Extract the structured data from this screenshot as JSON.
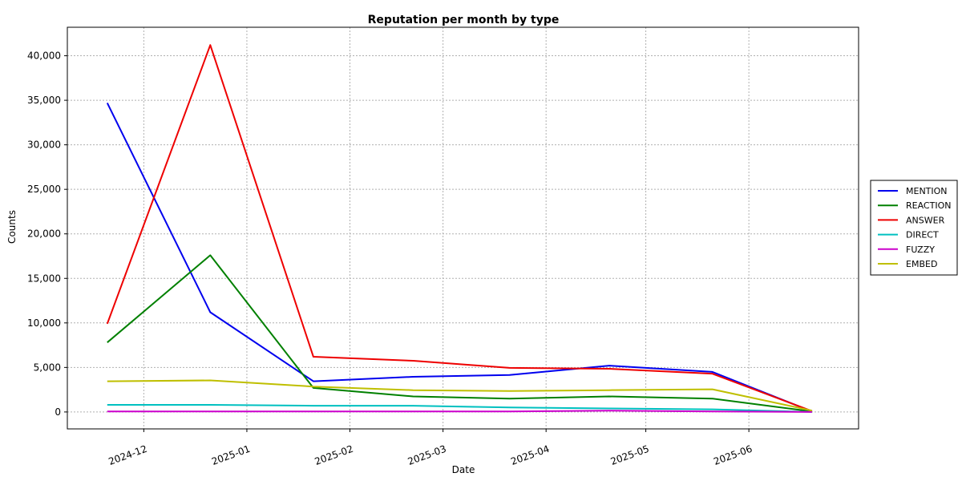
{
  "chart_data": {
    "type": "line",
    "title": "Reputation per month by type",
    "xlabel": "Date",
    "ylabel": "Counts",
    "x": [
      "2024-11-20",
      "2024-12-21",
      "2025-01-21",
      "2025-02-20",
      "2025-03-21",
      "2025-04-20",
      "2025-05-21",
      "2025-06-20"
    ],
    "xlim": [
      "2024-11-08",
      "2025-07-04"
    ],
    "ylim": [
      -1900,
      43200
    ],
    "x_ticks": [
      "2024-12-01",
      "2025-01-01",
      "2025-02-01",
      "2025-03-01",
      "2025-04-01",
      "2025-05-01",
      "2025-06-01"
    ],
    "x_tick_labels": [
      "2024-12",
      "2025-01",
      "2025-02",
      "2025-03",
      "2025-04",
      "2025-05",
      "2025-06"
    ],
    "y_ticks": [
      0,
      5000,
      10000,
      15000,
      20000,
      25000,
      30000,
      35000,
      40000
    ],
    "y_tick_labels": [
      "0",
      "5,000",
      "10,000",
      "15,000",
      "20,000",
      "25,000",
      "30,000",
      "35,000",
      "40,000"
    ],
    "grid": true,
    "legend_position": "right",
    "series": [
      {
        "name": "MENTION",
        "color": "#0000ee",
        "values": [
          34700,
          11200,
          3450,
          3950,
          4150,
          5200,
          4500,
          50
        ]
      },
      {
        "name": "REACTION",
        "color": "#008000",
        "values": [
          7800,
          17600,
          2700,
          1750,
          1500,
          1750,
          1500,
          50
        ]
      },
      {
        "name": "ANSWER",
        "color": "#ee0000",
        "values": [
          9900,
          41200,
          6200,
          5750,
          4950,
          4850,
          4300,
          100
        ]
      },
      {
        "name": "DIRECT",
        "color": "#00c0c0",
        "values": [
          800,
          800,
          700,
          700,
          500,
          400,
          300,
          0
        ]
      },
      {
        "name": "FUZZY",
        "color": "#cc00cc",
        "values": [
          50,
          50,
          50,
          50,
          50,
          150,
          50,
          0
        ]
      },
      {
        "name": "EMBED",
        "color": "#bfbf00",
        "values": [
          3450,
          3550,
          2850,
          2450,
          2350,
          2450,
          2550,
          150
        ]
      }
    ]
  }
}
